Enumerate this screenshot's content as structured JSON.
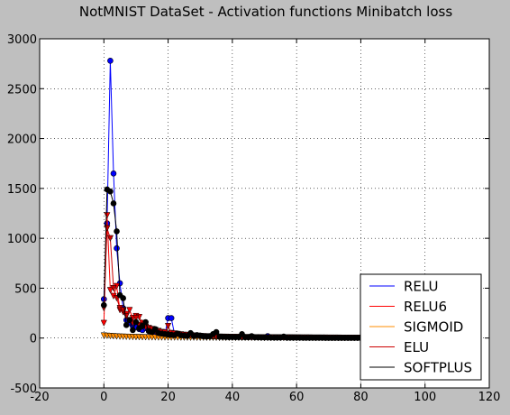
{
  "chart_data": {
    "type": "line",
    "title": "NotMNIST DataSet - Activation functions Minibatch loss",
    "xlabel": "",
    "ylabel": "",
    "xlim": [
      -20,
      120
    ],
    "ylim": [
      -500,
      3000
    ],
    "xticks": [
      -20,
      0,
      20,
      40,
      60,
      80,
      100,
      120
    ],
    "yticks": [
      -500,
      0,
      500,
      1000,
      1500,
      2000,
      2500,
      3000
    ],
    "grid": true,
    "legend_position": "lower-right",
    "series": [
      {
        "name": "RELU",
        "color": "#0000ff",
        "marker": "circle",
        "x": [
          0,
          1,
          2,
          3,
          4,
          5,
          6,
          7,
          8,
          9,
          10,
          11,
          12,
          13,
          14,
          15,
          16,
          17,
          18,
          19,
          20,
          21,
          22,
          23,
          24,
          25,
          26,
          27,
          28,
          29,
          30,
          31,
          32,
          33,
          34,
          35,
          36,
          37,
          38,
          39,
          40,
          41,
          42,
          43,
          44,
          45,
          46,
          47,
          48,
          49,
          50,
          51,
          52,
          53,
          54,
          55,
          56,
          57,
          58,
          59,
          60,
          61,
          62,
          63,
          64,
          65,
          66,
          67,
          68,
          69,
          70,
          71,
          72,
          73,
          74,
          75,
          76,
          77,
          78,
          79,
          80
        ],
        "y": [
          390,
          1150,
          2780,
          1650,
          900,
          550,
          300,
          180,
          150,
          120,
          110,
          90,
          80,
          100,
          70,
          60,
          55,
          50,
          45,
          40,
          200,
          200,
          40,
          35,
          30,
          30,
          28,
          25,
          25,
          22,
          20,
          18,
          18,
          16,
          16,
          15,
          14,
          14,
          13,
          12,
          12,
          11,
          11,
          10,
          10,
          10,
          9,
          9,
          9,
          8,
          8,
          20,
          8,
          7,
          7,
          7,
          7,
          6,
          6,
          6,
          6,
          6,
          5,
          5,
          5,
          5,
          5,
          5,
          4,
          4,
          4,
          4,
          4,
          4,
          4,
          3,
          3,
          3,
          3,
          3,
          3
        ]
      },
      {
        "name": "RELU6",
        "color": "#ff0000",
        "marker": "triangle-down",
        "x": [
          0,
          1,
          2,
          3,
          4,
          5,
          6,
          7,
          8,
          9,
          10,
          11,
          12,
          13,
          14,
          15,
          16,
          17,
          18,
          19,
          20,
          21,
          22,
          23,
          24,
          25,
          26,
          27,
          28,
          29,
          30,
          31,
          32,
          33,
          34,
          35,
          36,
          37,
          38,
          39,
          40,
          41,
          42,
          43,
          44,
          45,
          46,
          47,
          48,
          49,
          50,
          51,
          52,
          53,
          54,
          55,
          56,
          57,
          58,
          59,
          60,
          61,
          62,
          63,
          64,
          65,
          66,
          67,
          68,
          69,
          70,
          71,
          72,
          73,
          74,
          75,
          76,
          77,
          78,
          79,
          80
        ],
        "y": [
          150,
          1230,
          480,
          420,
          520,
          280,
          260,
          240,
          280,
          200,
          220,
          210,
          150,
          110,
          90,
          80,
          70,
          60,
          50,
          45,
          40,
          35,
          32,
          30,
          28,
          26,
          24,
          22,
          20,
          18,
          16,
          15,
          14,
          13,
          12,
          11,
          10,
          10,
          9,
          9,
          8,
          8,
          8,
          7,
          7,
          7,
          6,
          6,
          6,
          6,
          5,
          5,
          5,
          5,
          5,
          4,
          4,
          4,
          4,
          4,
          4,
          3,
          3,
          3,
          3,
          3,
          3,
          3,
          3,
          3,
          2,
          2,
          2,
          2,
          2,
          2,
          2,
          2,
          2,
          2,
          2
        ]
      },
      {
        "name": "SIGMOID",
        "color": "#ff8c00",
        "marker": "triangle-down",
        "x": [
          0,
          1,
          2,
          3,
          4,
          5,
          6,
          7,
          8,
          9,
          10,
          11,
          12,
          13,
          14,
          15,
          16,
          17,
          18,
          19,
          20,
          21,
          22,
          23,
          24,
          25,
          26,
          27,
          28,
          29,
          30,
          31,
          32,
          33,
          34,
          35,
          36,
          37,
          38,
          39,
          40,
          41,
          42,
          43,
          44,
          45,
          46,
          47,
          48,
          49,
          50,
          51,
          52,
          53,
          54,
          55,
          56,
          57,
          58,
          59,
          60,
          61,
          62,
          63,
          64,
          65,
          66,
          67,
          68,
          69,
          70,
          71,
          72,
          73,
          74,
          75,
          76,
          77,
          78,
          79,
          80
        ],
        "y": [
          25,
          22,
          20,
          18,
          16,
          14,
          13,
          12,
          11,
          10,
          9,
          9,
          8,
          8,
          7,
          7,
          7,
          6,
          6,
          6,
          5,
          5,
          5,
          5,
          4,
          4,
          4,
          4,
          4,
          3,
          3,
          3,
          3,
          3,
          3,
          3,
          2,
          2,
          2,
          2,
          2,
          2,
          2,
          2,
          2,
          2,
          2,
          2,
          2,
          1,
          1,
          1,
          1,
          1,
          1,
          1,
          1,
          1,
          1,
          1,
          1,
          1,
          1,
          1,
          1,
          1,
          1,
          1,
          1,
          1,
          1,
          1,
          1,
          1,
          1,
          1,
          1,
          1,
          1,
          1,
          1
        ]
      },
      {
        "name": "ELU",
        "color": "#cc0000",
        "marker": "triangle-down",
        "x": [
          0,
          1,
          2,
          3,
          4,
          5,
          6,
          7,
          8,
          9,
          10,
          11,
          12,
          13,
          14,
          15,
          16,
          17,
          18,
          19,
          20,
          21,
          22,
          23,
          24,
          25,
          26,
          27,
          28,
          29,
          30,
          31,
          32,
          33,
          34,
          35,
          36,
          37,
          38,
          39,
          40,
          41,
          42,
          43,
          44,
          45,
          46,
          47,
          48,
          49,
          50,
          51,
          52,
          53,
          54,
          55,
          56,
          57,
          58,
          59,
          60,
          61,
          62,
          63,
          64,
          65,
          66,
          67,
          68,
          69,
          70,
          71,
          72,
          73,
          74,
          75,
          76,
          77,
          78,
          79,
          80
        ],
        "y": [
          300,
          1100,
          1000,
          500,
          400,
          300,
          280,
          220,
          180,
          150,
          200,
          130,
          120,
          110,
          100,
          90,
          80,
          70,
          60,
          55,
          120,
          50,
          45,
          40,
          36,
          32,
          30,
          28,
          25,
          22,
          20,
          18,
          17,
          16,
          15,
          14,
          13,
          12,
          12,
          11,
          10,
          10,
          9,
          9,
          8,
          8,
          8,
          7,
          7,
          7,
          6,
          6,
          6,
          6,
          5,
          5,
          5,
          5,
          5,
          4,
          4,
          4,
          4,
          4,
          4,
          3,
          3,
          3,
          3,
          3,
          3,
          3,
          3,
          3,
          2,
          2,
          2,
          2,
          2,
          2,
          2
        ]
      },
      {
        "name": "SOFTPLUS",
        "color": "#000000",
        "marker": "circle",
        "x": [
          0,
          1,
          2,
          3,
          4,
          5,
          6,
          7,
          8,
          9,
          10,
          11,
          12,
          13,
          14,
          15,
          16,
          17,
          18,
          19,
          20,
          21,
          22,
          23,
          24,
          25,
          26,
          27,
          28,
          29,
          30,
          31,
          32,
          33,
          34,
          35,
          36,
          37,
          38,
          39,
          40,
          41,
          42,
          43,
          44,
          45,
          46,
          47,
          48,
          49,
          50,
          51,
          52,
          53,
          54,
          55,
          56,
          57,
          58,
          59,
          60,
          61,
          62,
          63,
          64,
          65,
          66,
          67,
          68,
          69,
          70,
          71,
          72,
          73,
          74,
          75,
          76,
          77,
          78,
          79,
          80
        ],
        "y": [
          330,
          1490,
          1470,
          1350,
          1070,
          430,
          400,
          130,
          180,
          80,
          160,
          100,
          120,
          160,
          70,
          60,
          90,
          50,
          45,
          40,
          35,
          32,
          30,
          45,
          28,
          25,
          22,
          50,
          20,
          30,
          25,
          18,
          15,
          20,
          40,
          60,
          14,
          12,
          11,
          10,
          10,
          9,
          9,
          40,
          8,
          8,
          20,
          7,
          7,
          6,
          6,
          6,
          5,
          5,
          5,
          5,
          15,
          4,
          4,
          4,
          4,
          4,
          3,
          3,
          3,
          3,
          3,
          3,
          3,
          2,
          2,
          2,
          2,
          2,
          2,
          2,
          2,
          2,
          2,
          2,
          2
        ]
      }
    ]
  }
}
